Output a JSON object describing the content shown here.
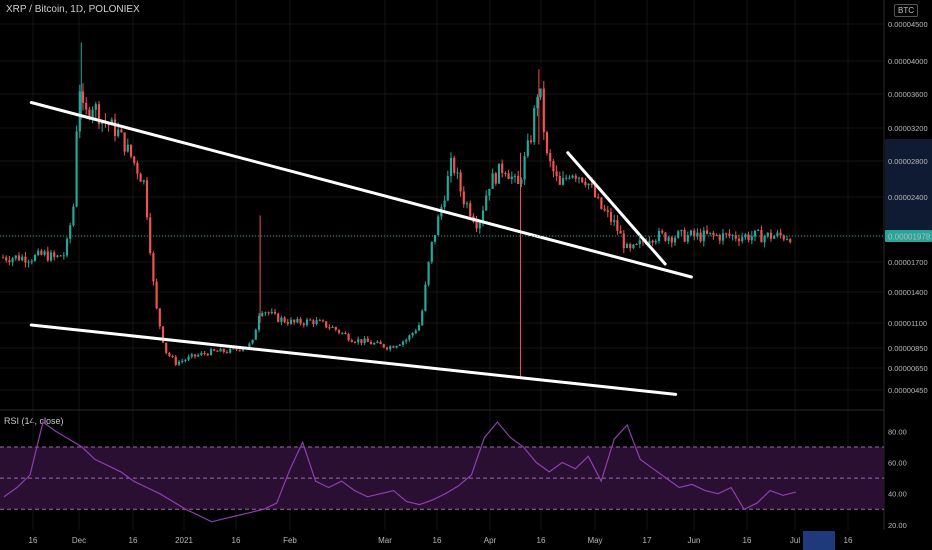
{
  "header": {
    "title": "XRP / Bitcoin, 1D, POLONIEX"
  },
  "currency_button": "BTC",
  "indicator": {
    "label": "RSI (14, close)"
  },
  "colors": {
    "up": "#26a69a",
    "down": "#ef5350",
    "rsi": "#8e3fb0",
    "band": "#2a0f33",
    "price_tag": "#26a69a",
    "trendline": "#ffffff"
  },
  "chart_data": [
    {
      "type": "candlestick",
      "title": "XRP / Bitcoin, 1D, POLONIEX",
      "y_unit": "BTC",
      "y_ticks": [
        "0.00004500",
        "0.00004000",
        "0.00003600",
        "0.00003200",
        "0.00002800",
        "0.00002400",
        "0.00001978",
        "0.00001700",
        "0.00001400",
        "0.00001100",
        "0.00000850",
        "0.00000650",
        "0.00000450"
      ],
      "y_tick_values": [
        4.5e-05,
        4e-05,
        3.6e-05,
        3.2e-05,
        2.8e-05,
        2.4e-05,
        1.978e-05,
        1.7e-05,
        1.4e-05,
        1.1e-05,
        8.5e-06,
        6.5e-06,
        4.5e-06
      ],
      "x_ticks": [
        "16",
        "Dec",
        "16",
        "2021",
        "16",
        "Feb",
        "Mar",
        "16",
        "Apr",
        "16",
        "May",
        "17",
        "Jun",
        "16",
        "Jul",
        "16"
      ],
      "last_price": "0.00001978",
      "series": [
        {
          "date": "2020-11-06",
          "close": 1.75e-05
        },
        {
          "date": "2020-11-10",
          "close": 1.78e-05
        },
        {
          "date": "2020-11-14",
          "close": 1.74e-05
        },
        {
          "date": "2020-11-18",
          "close": 1.79e-05
        },
        {
          "date": "2020-11-21",
          "close": 2.3e-05
        },
        {
          "date": "2020-11-23",
          "close": 3.8e-05
        },
        {
          "date": "2020-11-25",
          "close": 3.3e-05
        },
        {
          "date": "2020-11-28",
          "close": 3.5e-05
        },
        {
          "date": "2020-12-02",
          "close": 3.3e-05
        },
        {
          "date": "2020-12-08",
          "close": 3.15e-05
        },
        {
          "date": "2020-12-13",
          "close": 2.85e-05
        },
        {
          "date": "2020-12-18",
          "close": 2.55e-05
        },
        {
          "date": "2020-12-22",
          "close": 1.3e-05
        },
        {
          "date": "2020-12-26",
          "close": 8.2e-06
        },
        {
          "date": "2020-12-30",
          "close": 7e-06
        },
        {
          "date": "2021-01-05",
          "close": 7.6e-06
        },
        {
          "date": "2021-01-12",
          "close": 8.1e-06
        },
        {
          "date": "2021-01-20",
          "close": 8.2e-06
        },
        {
          "date": "2021-01-28",
          "close": 8.9e-06
        },
        {
          "date": "2021-01-31",
          "close": 1.25e-05
        },
        {
          "date": "2021-02-06",
          "close": 1.15e-05
        },
        {
          "date": "2021-02-13",
          "close": 1.1e-05
        },
        {
          "date": "2021-02-20",
          "close": 1.12e-05
        },
        {
          "date": "2021-02-27",
          "close": 1.06e-05
        },
        {
          "date": "2021-03-07",
          "close": 9.4e-06
        },
        {
          "date": "2021-03-14",
          "close": 9e-06
        },
        {
          "date": "2021-03-21",
          "close": 8.6e-06
        },
        {
          "date": "2021-03-28",
          "close": 9.4e-06
        },
        {
          "date": "2021-04-02",
          "close": 1.1e-05
        },
        {
          "date": "2021-04-06",
          "close": 1.85e-05
        },
        {
          "date": "2021-04-10",
          "close": 2.3e-05
        },
        {
          "date": "2021-04-14",
          "close": 2.8e-05
        },
        {
          "date": "2021-04-18",
          "close": 2.4e-05
        },
        {
          "date": "2021-04-24",
          "close": 2.1e-05
        },
        {
          "date": "2021-04-28",
          "close": 2.55e-05
        },
        {
          "date": "2021-05-04",
          "close": 2.75e-05
        },
        {
          "date": "2021-05-09",
          "close": 2.5e-05
        },
        {
          "date": "2021-05-14",
          "close": 3.1e-05
        },
        {
          "date": "2021-05-17",
          "close": 3.75e-05
        },
        {
          "date": "2021-05-20",
          "close": 2.85e-05
        },
        {
          "date": "2021-05-25",
          "close": 2.5e-05
        },
        {
          "date": "2021-05-29",
          "close": 2.7e-05
        },
        {
          "date": "2021-06-04",
          "close": 2.6e-05
        },
        {
          "date": "2021-06-09",
          "close": 2.3e-05
        },
        {
          "date": "2021-06-15",
          "close": 2.1e-05
        },
        {
          "date": "2021-06-20",
          "close": 1.8e-05
        },
        {
          "date": "2021-06-23",
          "close": 1.85e-05
        },
        {
          "date": "2021-06-28",
          "close": 1.978e-05
        }
      ],
      "trendlines": [
        {
          "name": "upper channel",
          "from": {
            "date": "2020-11-05",
            "price": 3.5e-05
          },
          "to": {
            "date": "2021-07-14",
            "price": 1.55e-05
          }
        },
        {
          "name": "lower channel",
          "from": {
            "date": "2020-11-05",
            "price": 1.08e-05
          },
          "to": {
            "date": "2021-07-08",
            "price": 4.1e-06
          }
        },
        {
          "name": "falling wedge",
          "from": {
            "date": "2021-05-28",
            "price": 2.9e-05
          },
          "to": {
            "date": "2021-07-04",
            "price": 1.68e-05
          }
        }
      ]
    },
    {
      "type": "line",
      "title": "RSI (14, close)",
      "y_ticks": [
        "80.00",
        "60.00",
        "40.00",
        "20.00"
      ],
      "levels": [
        70,
        50,
        30
      ],
      "ylim": [
        18,
        86
      ],
      "values": [
        38,
        44,
        52,
        86,
        80,
        75,
        70,
        62,
        58,
        54,
        48,
        44,
        40,
        35,
        30,
        26,
        22,
        24,
        26,
        28,
        30,
        34,
        55,
        73,
        48,
        44,
        48,
        42,
        38,
        40,
        42,
        35,
        33,
        36,
        40,
        45,
        52,
        76,
        86,
        76,
        70,
        60,
        54,
        60,
        56,
        64,
        48,
        75,
        84,
        62,
        56,
        50,
        44,
        46,
        42,
        40,
        44,
        30,
        34,
        42,
        39,
        41
      ]
    }
  ]
}
